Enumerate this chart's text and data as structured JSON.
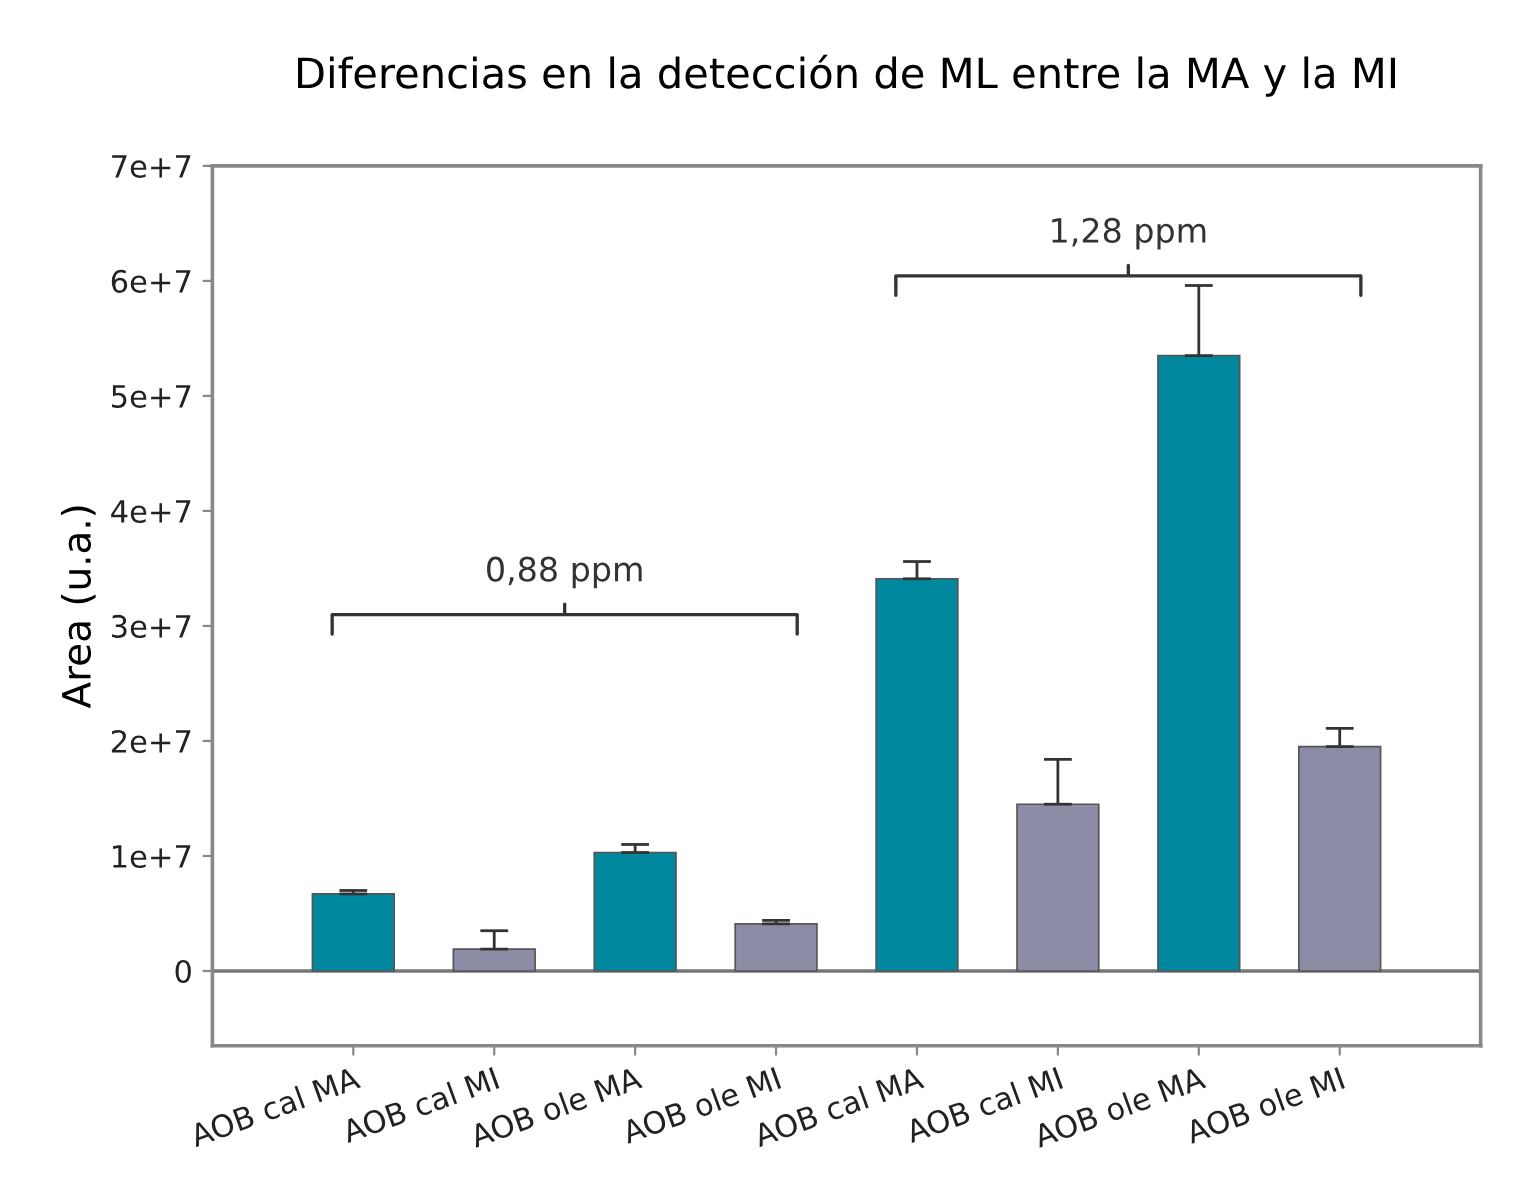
{
  "chart_data": {
    "type": "bar",
    "title": "Diferencias en la detección de ML entre la MA y la MI",
    "ylabel": "Area (u.a.)",
    "categories": [
      "AOB cal MA",
      "AOB cal MI",
      "AOB ole MA",
      "AOB ole MI",
      "AOB cal MA",
      "AOB cal MI",
      "AOB ole MA",
      "AOB ole MI"
    ],
    "values": [
      6700000,
      1900000,
      10300000,
      4100000,
      34100000,
      14500000,
      53500000,
      19500000
    ],
    "colors": [
      "#00899e",
      "#8c8ca6",
      "#00899e",
      "#8c8ca6",
      "#00899e",
      "#8c8ca6",
      "#00899e",
      "#8c8ca6"
    ],
    "errors": [
      [
        6700000,
        7000000
      ],
      [
        1900000,
        3500000
      ],
      [
        10300000,
        11000000
      ],
      [
        4100000,
        4400000
      ],
      [
        34100000,
        35600000
      ],
      [
        14500000,
        18400000
      ],
      [
        53500000,
        59600000
      ],
      [
        19500000,
        21100000
      ]
    ],
    "ref_lines": [
      {
        "axis": "y",
        "value": 0,
        "color": "#777777"
      }
    ],
    "ylim": [
      -6500000,
      70000000
    ],
    "yticks": [
      0,
      {
        "value": 10000000,
        "label": "1e+7"
      },
      {
        "value": 20000000,
        "label": "2e+7"
      },
      {
        "value": 30000000,
        "label": "3e+7"
      },
      {
        "value": 40000000,
        "label": "4e+7"
      },
      {
        "value": 50000000,
        "label": "5e+7"
      },
      {
        "value": 60000000,
        "label": "6e+7"
      },
      {
        "value": 70000000,
        "label": "7e+7"
      }
    ],
    "annotations": [
      "0,88 ppm",
      "1,28 ppm"
    ]
  }
}
